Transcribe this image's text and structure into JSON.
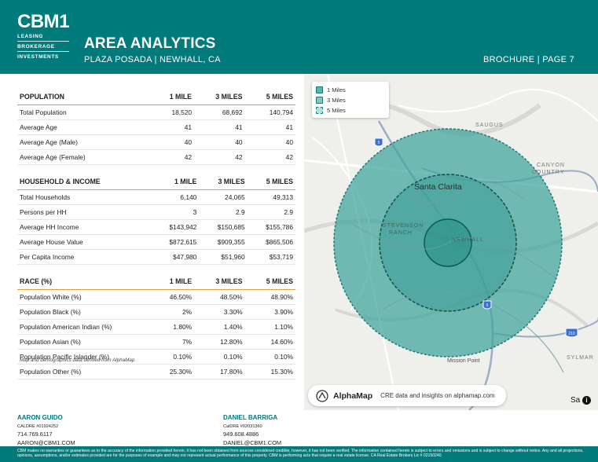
{
  "header": {
    "logo": "CBM1",
    "logo_lines": [
      "LEASING",
      "BROKERAGE",
      "INVESTMENTS"
    ],
    "title": "AREA ANALYTICS",
    "subtitle": "PLAZA POSADA | NEWHALL, CA",
    "page": "BROCHURE | PAGE 7"
  },
  "columns": [
    "1 MILE",
    "3 MILES",
    "5 MILES"
  ],
  "population": {
    "heading": "POPULATION",
    "rows": [
      {
        "label": "Total Population",
        "v1": "18,520",
        "v3": "68,692",
        "v5": "140,794"
      },
      {
        "label": "Average Age",
        "v1": "41",
        "v3": "41",
        "v5": "41"
      },
      {
        "label": "Average Age (Male)",
        "v1": "40",
        "v3": "40",
        "v5": "40"
      },
      {
        "label": "Average Age (Female)",
        "v1": "42",
        "v3": "42",
        "v5": "42"
      }
    ]
  },
  "household": {
    "heading": "HOUSEHOLD & INCOME",
    "rows": [
      {
        "label": "Total Households",
        "v1": "6,140",
        "v3": "24,065",
        "v5": "49,313"
      },
      {
        "label": "Persons per HH",
        "v1": "3",
        "v3": "2.9",
        "v5": "2.9"
      },
      {
        "label": "Average HH Income",
        "v1": "$143,942",
        "v3": "$150,685",
        "v5": "$155,786"
      },
      {
        "label": "Average House Value",
        "v1": "$872,615",
        "v3": "$909,355",
        "v5": "$865,506"
      },
      {
        "label": "Per Capita Income",
        "v1": "$47,980",
        "v3": "$51,960",
        "v5": "$53,719"
      }
    ]
  },
  "race": {
    "heading": "RACE (%)",
    "rows": [
      {
        "label": "Population White (%)",
        "v1": "46.50%",
        "v3": "48.50%",
        "v5": "48.90%"
      },
      {
        "label": "Population Black (%)",
        "v1": "2%",
        "v3": "3.30%",
        "v5": "3.90%"
      },
      {
        "label": "Population American Indian (%)",
        "v1": "1.80%",
        "v3": "1.40%",
        "v5": "1.10%"
      },
      {
        "label": "Population Asian (%)",
        "v1": "7%",
        "v3": "12.80%",
        "v5": "14.60%"
      },
      {
        "label": "Population Pacific Islander (%)",
        "v1": "0.10%",
        "v3": "0.10%",
        "v5": "0.10%"
      },
      {
        "label": "Population Other (%)",
        "v1": "25.30%",
        "v3": "17.80%",
        "v5": "15.30%"
      }
    ]
  },
  "note": "Map and demographics data derived from AlphaMap",
  "map": {
    "legend": [
      "1 Miles",
      "3 Miles",
      "5 Miles"
    ],
    "labels": {
      "saugus": "SAUGUS",
      "canyon1": "CANYON",
      "canyon2": "COUNTRY",
      "santa_clarita": "Santa Clarita",
      "stevenson1": "STEVENSON",
      "stevenson2": "RANCH",
      "newhall": "NEWHALL",
      "mission_point": "Mission Point",
      "sylmar": "SYLMAR",
      "shield_5a": "5",
      "shield_5b": "5",
      "shield_210": "210"
    },
    "alphamap_name": "AlphaMap",
    "alphamap_tagline": "CRE data and insights on alphamap.com",
    "corner_text": "Sa",
    "colors": {
      "ring_fill": "#3fa39c",
      "ring_stroke": "#1a7a75"
    }
  },
  "contacts": [
    {
      "name": "AARON GUIDO",
      "license": "CALDRE #01924252",
      "phone": "714.769.6117",
      "email": "AARON@CBM1.COM"
    },
    {
      "name": "DANIEL BARRIGA",
      "license": "CalDRE #02031360",
      "phone": "949.608.4886",
      "email": "DANIEL@CBM1.COM"
    }
  ],
  "footer": "CBM makes no warranties or guarantees as to the accuracy of the information provided herein, it has not been obtained from sources considered credible, however, it has not been verified. The information contained herein is subject to errors and omissions and is subject to change without notice. Any and all projections, opinions, assumptions, and/or estimates provided are for the purposes of example and may not represent actual performance of this property. CBM is performing acts that require a real estate license. CA Real Estate Brokers Lic # 02150240"
}
